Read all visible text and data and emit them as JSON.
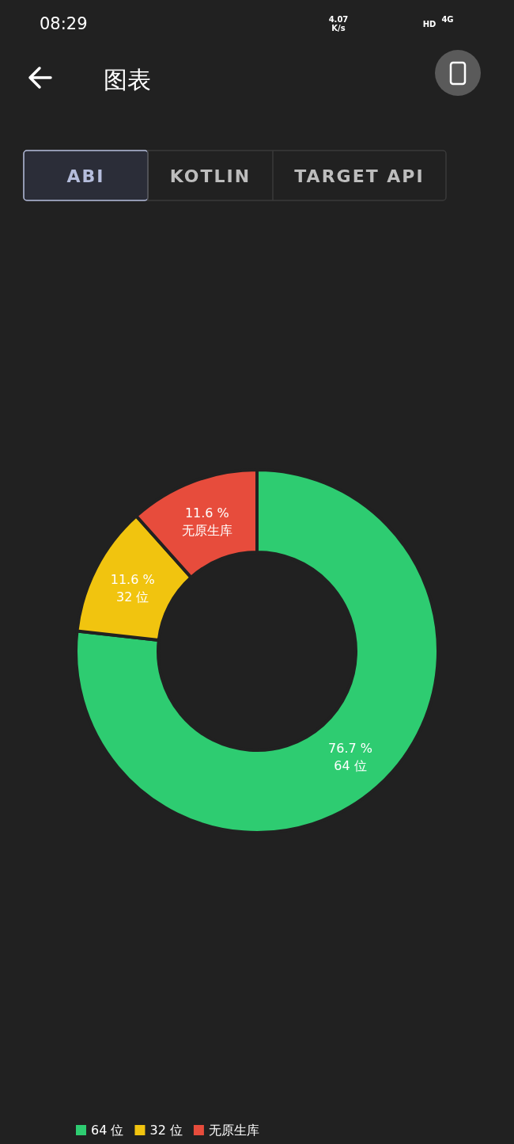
{
  "chart_data": {
    "type": "donut",
    "title": "图表",
    "annotations": [
      "08:29",
      "4.07 K/s",
      "HD",
      "4G",
      "ABI",
      "KOTLIN",
      "TARGET API"
    ],
    "categories": [
      "64 位",
      "32 位",
      "无原生库"
    ],
    "values": [
      76.7,
      11.6,
      11.6
    ],
    "value_labels": [
      "76.7 %",
      "11.6 %",
      "11.6 %"
    ],
    "colors": [
      "#2ecc71",
      "#f1c40f",
      "#e74c3c"
    ],
    "legend": "bottom left"
  }
}
